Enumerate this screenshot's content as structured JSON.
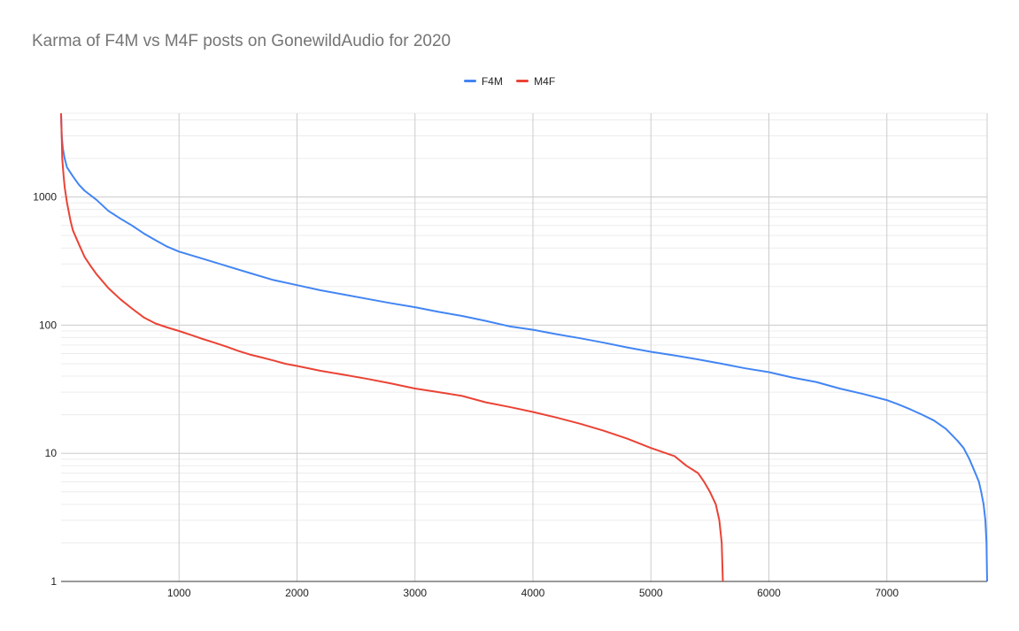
{
  "chart_data": {
    "type": "line",
    "title": "Karma of F4M vs M4F posts on GonewildAudio for 2020",
    "xlabel": "",
    "ylabel": "",
    "x_ticks": [
      1000,
      2000,
      3000,
      4000,
      5000,
      6000,
      7000
    ],
    "y_ticks": [
      1,
      10,
      100,
      1000
    ],
    "y_scale": "log",
    "xlim": [
      0,
      7850
    ],
    "ylim": [
      1,
      4500
    ],
    "grid": true,
    "legend_position": "top",
    "series": [
      {
        "name": "F4M",
        "color": "#4285f4",
        "points": [
          [
            0,
            4300
          ],
          [
            5,
            3000
          ],
          [
            15,
            2400
          ],
          [
            30,
            2000
          ],
          [
            50,
            1700
          ],
          [
            100,
            1450
          ],
          [
            150,
            1250
          ],
          [
            200,
            1120
          ],
          [
            300,
            950
          ],
          [
            400,
            780
          ],
          [
            500,
            680
          ],
          [
            600,
            600
          ],
          [
            700,
            520
          ],
          [
            800,
            460
          ],
          [
            900,
            410
          ],
          [
            1000,
            375
          ],
          [
            1200,
            330
          ],
          [
            1400,
            290
          ],
          [
            1600,
            255
          ],
          [
            1800,
            225
          ],
          [
            2000,
            205
          ],
          [
            2200,
            187
          ],
          [
            2400,
            173
          ],
          [
            2600,
            160
          ],
          [
            2800,
            148
          ],
          [
            3000,
            138
          ],
          [
            3200,
            127
          ],
          [
            3400,
            118
          ],
          [
            3600,
            108
          ],
          [
            3800,
            98
          ],
          [
            4000,
            92
          ],
          [
            4200,
            85
          ],
          [
            4400,
            79
          ],
          [
            4600,
            73
          ],
          [
            4800,
            67
          ],
          [
            5000,
            62
          ],
          [
            5200,
            58
          ],
          [
            5400,
            54
          ],
          [
            5600,
            50
          ],
          [
            5800,
            46
          ],
          [
            6000,
            43
          ],
          [
            6200,
            39
          ],
          [
            6400,
            36
          ],
          [
            6600,
            32
          ],
          [
            6800,
            29
          ],
          [
            7000,
            26
          ],
          [
            7100,
            24
          ],
          [
            7200,
            22
          ],
          [
            7300,
            20
          ],
          [
            7400,
            18
          ],
          [
            7500,
            15.5
          ],
          [
            7600,
            12.5
          ],
          [
            7650,
            11
          ],
          [
            7700,
            9
          ],
          [
            7750,
            7
          ],
          [
            7780,
            6
          ],
          [
            7800,
            5
          ],
          [
            7820,
            4
          ],
          [
            7835,
            3
          ],
          [
            7845,
            2
          ],
          [
            7850,
            1
          ]
        ]
      },
      {
        "name": "M4F",
        "color": "#ea4335",
        "points": [
          [
            0,
            4500
          ],
          [
            5,
            3000
          ],
          [
            10,
            2000
          ],
          [
            20,
            1500
          ],
          [
            30,
            1200
          ],
          [
            50,
            900
          ],
          [
            80,
            650
          ],
          [
            100,
            550
          ],
          [
            150,
            430
          ],
          [
            200,
            340
          ],
          [
            250,
            290
          ],
          [
            300,
            250
          ],
          [
            400,
            195
          ],
          [
            500,
            160
          ],
          [
            600,
            135
          ],
          [
            700,
            115
          ],
          [
            800,
            103
          ],
          [
            900,
            96
          ],
          [
            1000,
            90
          ],
          [
            1100,
            84
          ],
          [
            1200,
            78
          ],
          [
            1300,
            73
          ],
          [
            1400,
            68
          ],
          [
            1500,
            63
          ],
          [
            1600,
            59
          ],
          [
            1700,
            56
          ],
          [
            1800,
            53
          ],
          [
            1900,
            50
          ],
          [
            2000,
            48
          ],
          [
            2200,
            44
          ],
          [
            2400,
            41
          ],
          [
            2600,
            38
          ],
          [
            2800,
            35
          ],
          [
            3000,
            32
          ],
          [
            3200,
            30
          ],
          [
            3400,
            28
          ],
          [
            3600,
            25
          ],
          [
            3800,
            23
          ],
          [
            4000,
            21
          ],
          [
            4200,
            19
          ],
          [
            4400,
            17
          ],
          [
            4600,
            15
          ],
          [
            4800,
            13
          ],
          [
            5000,
            11
          ],
          [
            5200,
            9.5
          ],
          [
            5300,
            8
          ],
          [
            5400,
            7
          ],
          [
            5450,
            6
          ],
          [
            5500,
            5
          ],
          [
            5550,
            4
          ],
          [
            5580,
            3
          ],
          [
            5600,
            2
          ],
          [
            5610,
            1
          ]
        ]
      }
    ]
  }
}
